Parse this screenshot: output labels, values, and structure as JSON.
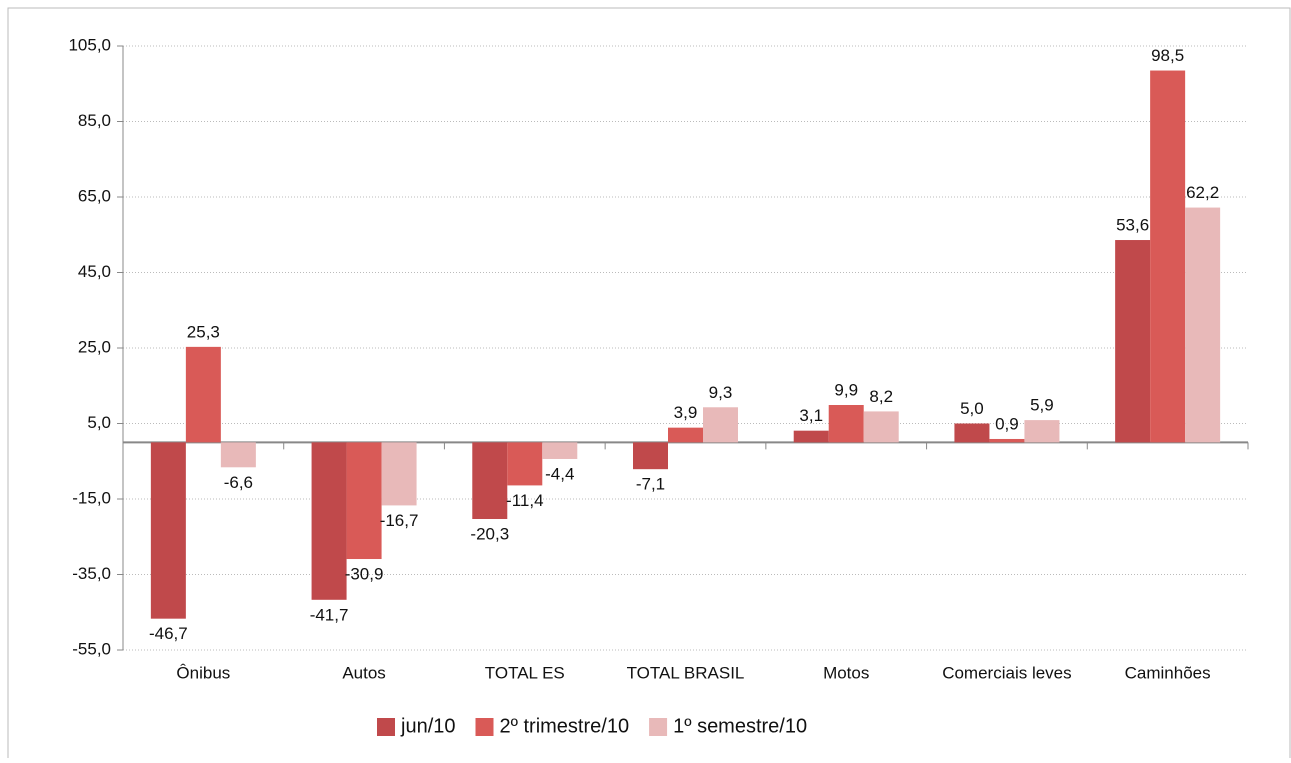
{
  "chart_data": {
    "type": "bar",
    "categories": [
      "Ônibus",
      "Autos",
      "TOTAL ES",
      "TOTAL BRASIL",
      "Motos",
      "Comerciais leves",
      "Caminhões"
    ],
    "series": [
      {
        "name": "jun/10",
        "color": "#c0494b",
        "values": [
          -46.7,
          -41.7,
          -20.3,
          -7.1,
          3.1,
          5.0,
          53.6
        ],
        "value_labels": [
          "-46,7",
          "-41,7",
          "-20,3",
          "-7,1",
          "3,1",
          "5,0",
          "53,6"
        ]
      },
      {
        "name": "2º trimestre/10",
        "color": "#d95a57",
        "values": [
          25.3,
          -30.9,
          -11.4,
          3.9,
          9.9,
          0.9,
          98.5
        ],
        "value_labels": [
          "25,3",
          "-30,9",
          "-11,4",
          "3,9",
          "9,9",
          "0,9",
          "98,5"
        ]
      },
      {
        "name": "1º semestre/10",
        "color": "#e8b9b9",
        "values": [
          -6.6,
          -16.7,
          -4.4,
          9.3,
          8.2,
          5.9,
          62.2
        ],
        "value_labels": [
          "-6,6",
          "-16,7",
          "-4,4",
          "9,3",
          "8,2",
          "5,9",
          "62,2"
        ]
      }
    ],
    "ylim": [
      -55,
      105
    ],
    "yticks": [
      {
        "value": -55,
        "label": "-55,0"
      },
      {
        "value": -35,
        "label": "-35,0"
      },
      {
        "value": -15,
        "label": "-15,0"
      },
      {
        "value": 5,
        "label": "5,0"
      },
      {
        "value": 25,
        "label": "25,0"
      },
      {
        "value": 45,
        "label": "45,0"
      },
      {
        "value": 65,
        "label": "65,0"
      },
      {
        "value": 85,
        "label": "85,0"
      },
      {
        "value": 105,
        "label": "105,0"
      }
    ],
    "grid": true,
    "legend": "bottom"
  }
}
